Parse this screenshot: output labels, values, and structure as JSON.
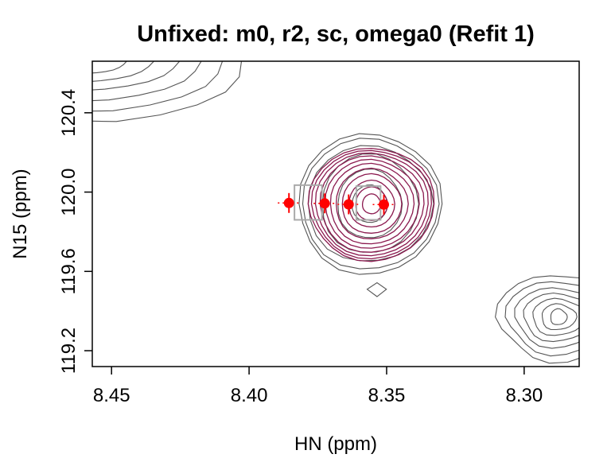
{
  "chart_data": {
    "type": "scatter",
    "title": "Unfixed: m0, r2, sc, omega0 (Refit 1)",
    "xlabel": "HN (ppm)",
    "ylabel": "N15 (ppm)",
    "xlim": [
      8.457,
      8.28
    ],
    "ylim": [
      120.66,
      119.12
    ],
    "x_ticks": [
      "8.45",
      "8.40",
      "8.35",
      "8.30"
    ],
    "x_tick_values": [
      8.45,
      8.4,
      8.35,
      8.3
    ],
    "y_ticks": [
      "119.2",
      "119.6",
      "120.0",
      "120.4"
    ],
    "y_tick_values": [
      119.2,
      119.6,
      120.0,
      120.4
    ],
    "grid": false,
    "colors": {
      "observed_contours": "#555555",
      "fitted_contours": "#8b1a4f",
      "peaks": "#ff0000",
      "boxes": "#aaaaaa",
      "axes": "#000000"
    },
    "fitted_contour_center": {
      "x": 8.3555,
      "y": 119.94
    },
    "fitted_contour_radius_x": [
      0.0033,
      0.0058,
      0.0083,
      0.0108,
      0.0131,
      0.0152,
      0.0171,
      0.0189,
      0.0205,
      0.0218,
      0.0229
    ],
    "fitted_contour_radius_y": [
      0.05,
      0.085,
      0.118,
      0.15,
      0.178,
      0.203,
      0.224,
      0.243,
      0.259,
      0.273,
      0.285
    ],
    "peaks": [
      {
        "x": 8.3855,
        "y": 119.945,
        "yerr": 0.05
      },
      {
        "x": 8.3725,
        "y": 119.943,
        "yerr": 0.05
      },
      {
        "x": 8.3638,
        "y": 119.938,
        "yerr": 0.05
      },
      {
        "x": 8.351,
        "y": 119.937,
        "yerr": 0.05
      }
    ],
    "boxes": [
      {
        "x0": 8.3835,
        "x1": 8.3735,
        "y0": 119.86,
        "y1": 120.035
      },
      {
        "x0": 8.361,
        "x1": 8.3522,
        "y0": 119.86,
        "y1": 120.03
      }
    ],
    "observed_contours": [
      {
        "center": {
          "x": 8.3562,
          "y": 119.94
        },
        "radius_x": [
          0.0064,
          0.0117,
          0.0175,
          0.0228,
          0.0248,
          0.026
        ],
        "radius_y": [
          0.095,
          0.174,
          0.25,
          0.292,
          0.33,
          0.355
        ]
      },
      {
        "center": {
          "x": 8.2875,
          "y": 119.37
        },
        "radius_x": [
          0.003,
          0.0063,
          0.0097,
          0.013,
          0.016,
          0.019,
          0.022
        ],
        "radius_y": [
          0.04,
          0.065,
          0.092,
          0.12,
          0.15,
          0.185,
          0.22
        ]
      },
      {
        "center": {
          "x": 8.457,
          "y": 120.66
        },
        "radius_x": [
          0.012,
          0.022,
          0.032,
          0.041,
          0.05,
          0.058
        ],
        "radius_y": [
          0.06,
          0.1,
          0.14,
          0.19,
          0.24,
          0.29
        ]
      },
      {
        "center": {
          "x": 8.3535,
          "y": 119.51
        },
        "radius_x": [
          0.0035
        ],
        "radius_y": [
          0.035
        ]
      }
    ]
  }
}
